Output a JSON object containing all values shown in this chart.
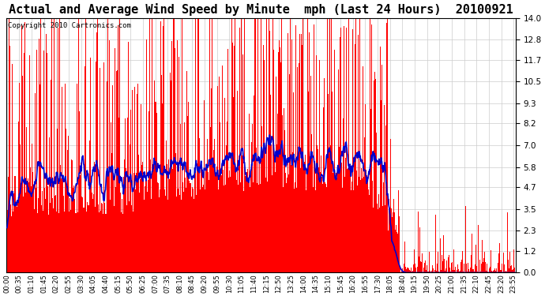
{
  "title": "Actual and Average Wind Speed by Minute  mph (Last 24 Hours)  20100921",
  "copyright": "Copyright 2010 Cartronics.com",
  "yticks": [
    0.0,
    1.2,
    2.3,
    3.5,
    4.7,
    5.8,
    7.0,
    8.2,
    9.3,
    10.5,
    11.7,
    12.8,
    14.0
  ],
  "ylim": [
    0.0,
    14.0
  ],
  "bar_color": "#FF0000",
  "line_color": "#0000CC",
  "bg_color": "#FFFFFF",
  "grid_color": "#CCCCCC",
  "title_fontsize": 11,
  "copyright_fontsize": 6.5,
  "xtick_step_minutes": 35,
  "n_minutes": 1440
}
